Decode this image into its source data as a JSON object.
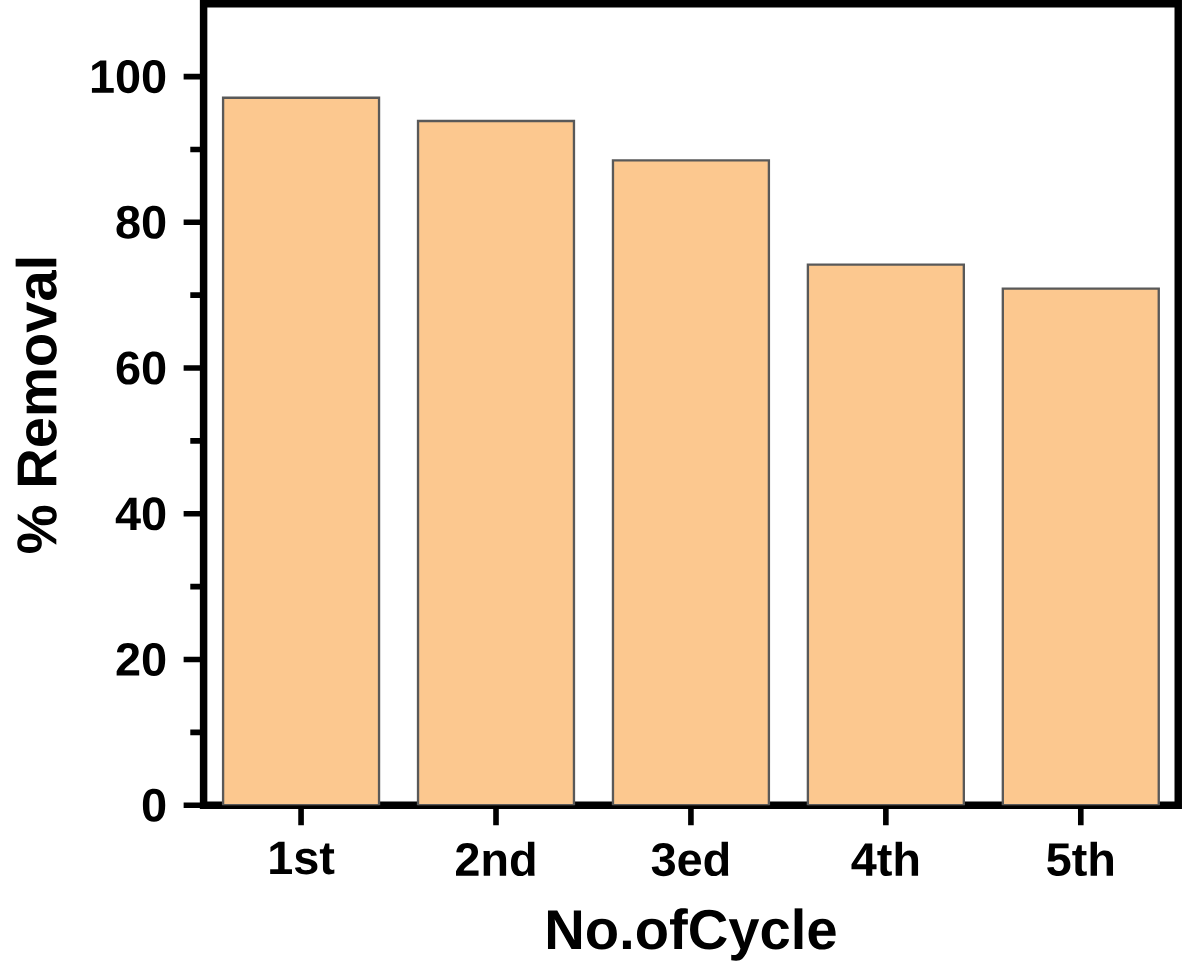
{
  "chart_data": {
    "type": "bar",
    "xlabel": "No.ofCycle",
    "ylabel": "% Removal",
    "categories": [
      "1st",
      "2nd",
      "3ed",
      "4th",
      "5th"
    ],
    "values": [
      97.1,
      93.9,
      88.5,
      74.2,
      70.9
    ],
    "color": "#fcc88f",
    "ylim": [
      0,
      110
    ],
    "yticks": [
      0,
      20,
      40,
      60,
      80,
      100
    ],
    "grid": false
  }
}
